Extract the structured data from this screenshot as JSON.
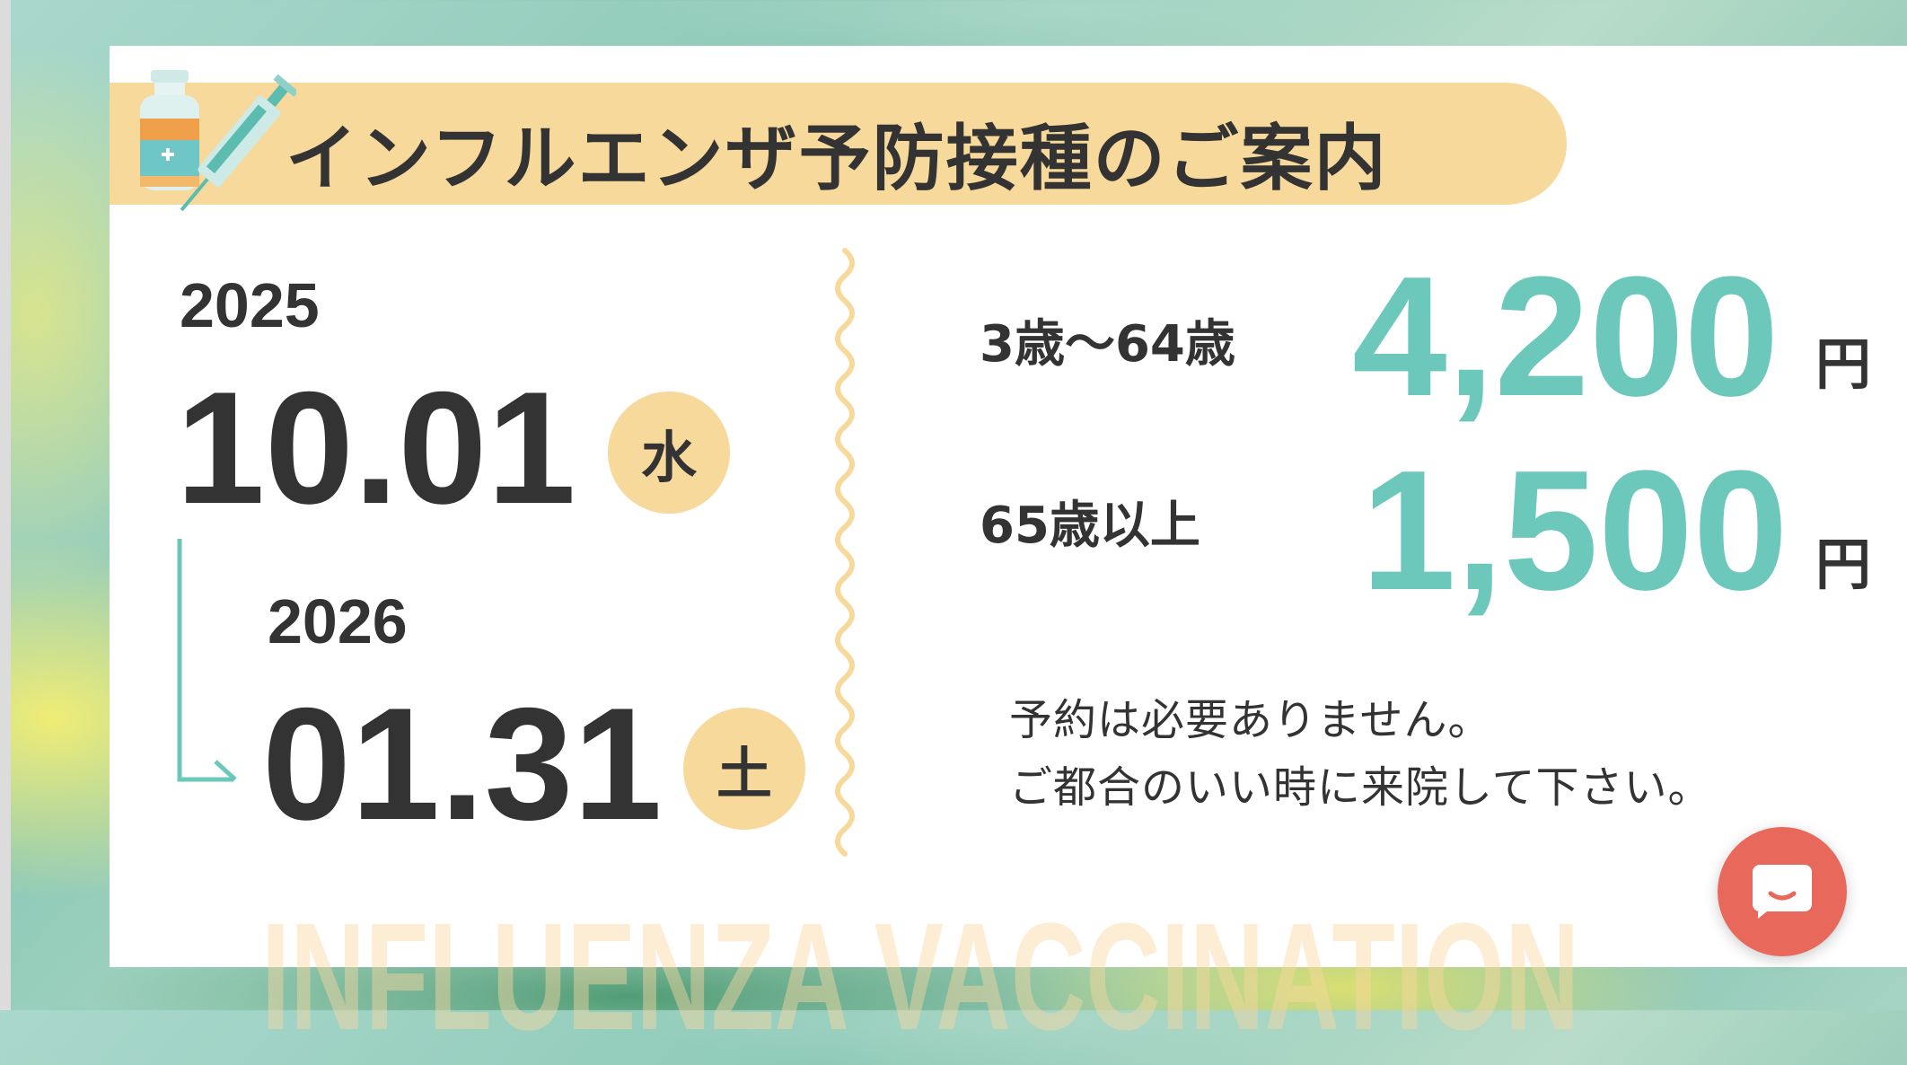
{
  "banner": {
    "title": "インフルエンザ予防接種のご案内",
    "icon": "vaccine-syringe-icon"
  },
  "period": {
    "start": {
      "year": "2025",
      "date": "10.01",
      "weekday": "水"
    },
    "end": {
      "year": "2026",
      "date": "01.31",
      "weekday": "土"
    }
  },
  "prices": [
    {
      "age": "3歳〜64歳",
      "amount": "4,200",
      "unit": "円"
    },
    {
      "age": "65歳以上",
      "amount": "1,500",
      "unit": "円"
    }
  ],
  "notes": [
    "予約は必要ありません。",
    "ご都合のいい時に来院して下さい。"
  ],
  "watermark": "INFLUENZA VACCINATION",
  "chat": {
    "icon": "chat-bubble-icon"
  },
  "colors": {
    "accent": "#6cc8bb",
    "banner": "#f8d99c",
    "chat": "#e8695c",
    "text": "#333333"
  }
}
